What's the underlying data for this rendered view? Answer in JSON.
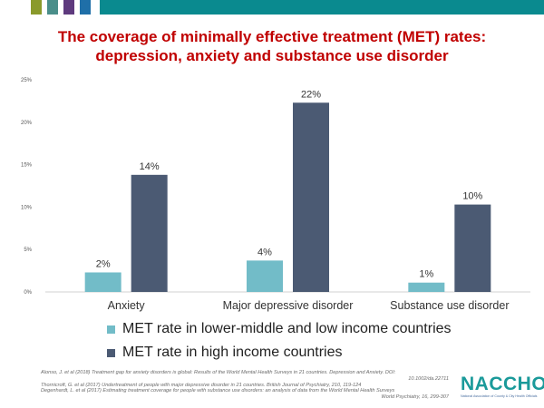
{
  "colors": {
    "accent_red": "#c00000",
    "topbar_squares": [
      "#8a9a2b",
      "#4a8e8a",
      "#5e3a7e",
      "#1f6fa8"
    ],
    "topbar_band": "#0a8a8f",
    "series_low": "#72bcc8",
    "series_high": "#4b5a73",
    "axis_text": "#555555",
    "logo_teal": "#1a9a9a"
  },
  "header": {
    "title_line1": "The coverage of minimally effective treatment (MET) rates:",
    "title_line2": "depression, anxiety and substance use disorder"
  },
  "chart_data": {
    "type": "bar",
    "categories": [
      "Anxiety",
      "Major depressive disorder",
      "Substance use disorder"
    ],
    "series": [
      {
        "name": "MET rate in lower-middle and low income countries",
        "values": [
          2.3,
          3.7,
          1.1
        ],
        "labels": [
          "2%",
          "4%",
          "1%"
        ],
        "color": "#72bcc8"
      },
      {
        "name": "MET rate in high income countries",
        "values": [
          13.8,
          22.3,
          10.3
        ],
        "labels": [
          "14%",
          "22%",
          "10%"
        ],
        "color": "#4b5a73"
      }
    ],
    "yticks": [
      0,
      5,
      10,
      15,
      20,
      25
    ],
    "ytick_labels": [
      "0%",
      "5%",
      "10%",
      "15%",
      "20%",
      "25%"
    ],
    "ylim": [
      0,
      25
    ],
    "grid": false,
    "legend": "bottom",
    "title": "",
    "xlabel": "",
    "ylabel": ""
  },
  "references": [
    "Alonso, J. et al (2018) Treatment gap for anxiety disorders is global: Results of the World Mental Health Surveys in 21 countries. Depression and Anxiety. DOI:",
    "10.1002/da.22711",
    "Thornicroft, G. et al (2017) Undertreatment of people with major depressive disorder in 21 countries. British Journal of Psychiatry, 210, 119-124",
    "Degenhardt, L. et al (2017) Estimating treatment coverage for people with substance use disorders: an analysis of data from the World Mental Health Surveys",
    "World Psychiatry, 16, 299-307"
  ],
  "logo": {
    "word": "NACCHO",
    "subtitle": "National Association of County & City Health Officials"
  }
}
